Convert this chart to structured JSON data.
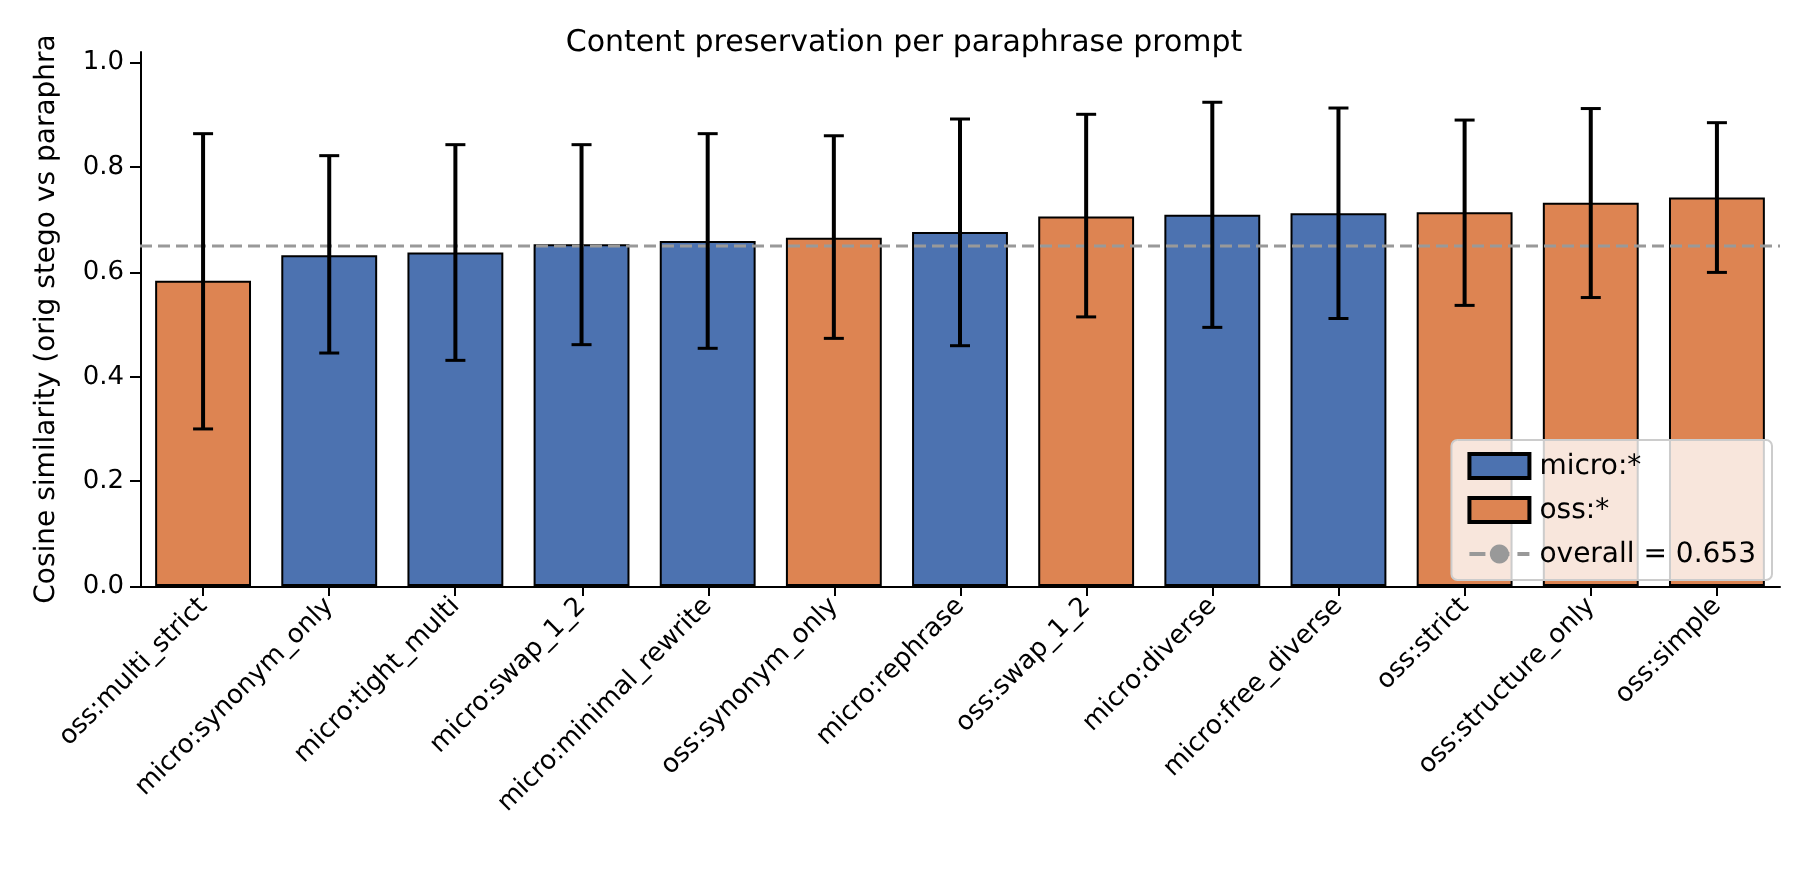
{
  "chart_data": {
    "type": "bar",
    "title": "Content preservation per paraphrase prompt",
    "ylabel": "Cosine similarity (orig stego vs paraphra",
    "categories": [
      "oss:multi_strict",
      "micro:synonym_only",
      "micro:tight_multi",
      "micro:swap_1_2",
      "micro:minimal_rewrite",
      "oss:synonym_only",
      "micro:rephrase",
      "oss:swap_1_2",
      "micro:diverse",
      "micro:free_diverse",
      "oss:strict",
      "oss:structure_only",
      "oss:simple"
    ],
    "series": [
      {
        "name": "micro:*",
        "color": "#4c72b0",
        "values": [
          null,
          0.632,
          0.637,
          0.653,
          0.659,
          null,
          0.676,
          null,
          0.709,
          0.712,
          null,
          null,
          null
        ],
        "errors": [
          null,
          [
            0.445,
            0.822
          ],
          [
            0.431,
            0.843
          ],
          [
            0.461,
            0.843
          ],
          [
            0.454,
            0.864
          ],
          null,
          [
            0.459,
            0.892
          ],
          null,
          [
            0.494,
            0.924
          ],
          [
            0.511,
            0.913
          ],
          null,
          null,
          null
        ]
      },
      {
        "name": "oss:*",
        "color": "#dd8452",
        "values": [
          0.583,
          null,
          null,
          null,
          null,
          0.665,
          null,
          0.706,
          null,
          null,
          0.714,
          0.732,
          0.742
        ],
        "errors": [
          [
            0.3,
            0.864
          ],
          null,
          null,
          null,
          null,
          [
            0.473,
            0.86
          ],
          null,
          [
            0.514,
            0.901
          ],
          null,
          null,
          [
            0.536,
            0.89
          ],
          [
            0.551,
            0.912
          ],
          [
            0.599,
            0.885
          ]
        ]
      }
    ],
    "ylim": [
      0,
      1.02
    ],
    "yticks": [
      {
        "value": 0,
        "label": "0.0"
      },
      {
        "value": 0.2,
        "label": "0.2"
      },
      {
        "value": 0.4,
        "label": "0.4"
      },
      {
        "value": 0.6,
        "label": "0.6"
      },
      {
        "value": 0.8,
        "label": "0.8"
      },
      {
        "value": 1,
        "label": "1.0"
      }
    ],
    "ref_lines": [
      {
        "axis": "y",
        "value": 0.653,
        "label": "overall = 0.653",
        "color": "#999999",
        "line_style": "dashed"
      }
    ],
    "legend": "bottom right",
    "grid": false
  }
}
